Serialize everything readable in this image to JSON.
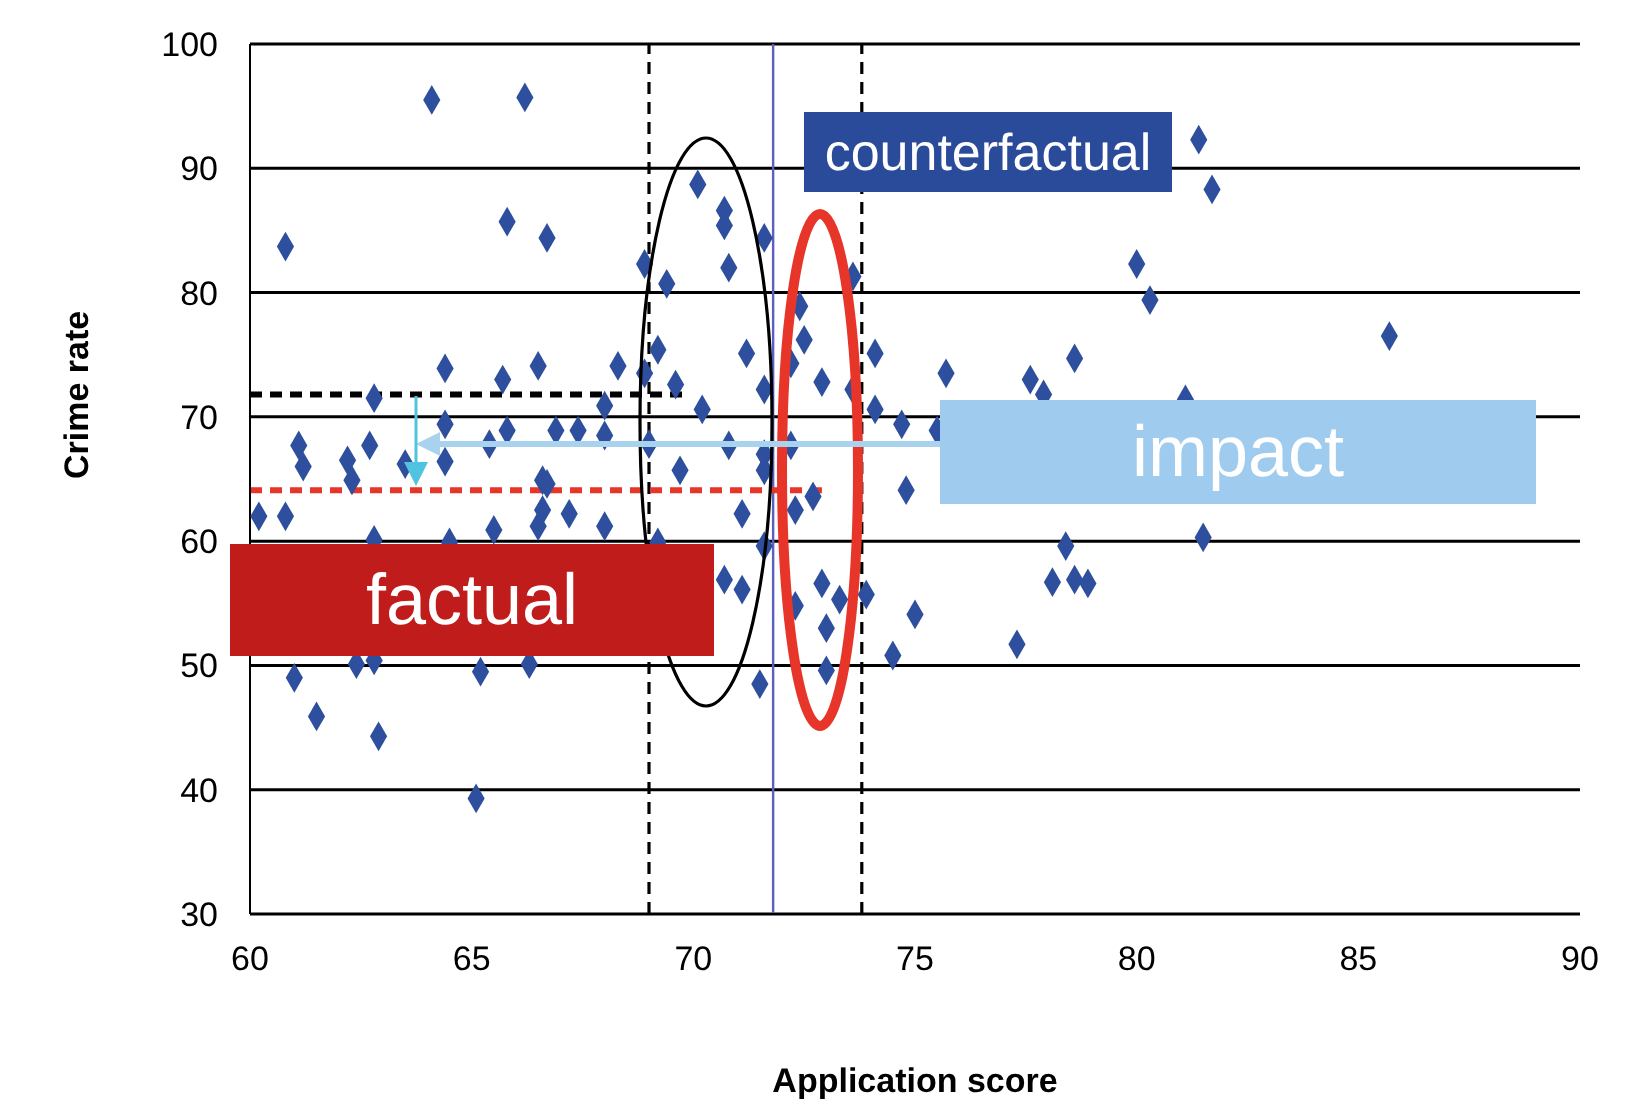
{
  "chart_data": {
    "type": "scatter",
    "xlabel": "Application score",
    "ylabel": "Crime rate",
    "xlim": [
      60,
      90
    ],
    "xticks": [
      60,
      65,
      70,
      75,
      80,
      85,
      90
    ],
    "ylim": [
      30,
      100
    ],
    "yticks": [
      30,
      40,
      50,
      60,
      70,
      80,
      90,
      100
    ],
    "grid": "y",
    "legend": false,
    "annotations": [
      "counterfactual",
      "factual",
      "impact"
    ],
    "ref_lines": [
      {
        "axis": "x",
        "value": 69.0,
        "color": "#000000",
        "line_style": "dashed"
      },
      {
        "axis": "x",
        "value": 73.8,
        "color": "#000000",
        "line_style": "dashed"
      },
      {
        "axis": "x",
        "value": 71.8,
        "color": "#5a5fc0",
        "line_style": "solid"
      }
    ],
    "series": [
      {
        "type": "scatter",
        "color": "#2e4f9e",
        "marker": "diamond",
        "x": [
          70.1,
          70.7,
          70.7,
          71.6,
          70.8,
          73.6,
          72.4,
          72.5,
          71.2,
          74.1,
          72.2,
          72.9,
          71.6,
          73.6,
          75.7,
          70.2,
          74.1,
          74.7,
          75.5,
          70.8,
          71.6,
          72.2,
          71.6,
          74.8,
          71.1,
          72.7,
          72.3,
          71.6,
          70.7,
          71.1,
          72.9,
          73.3,
          73.9,
          72.3,
          73.0,
          75.0,
          74.5,
          73.0,
          71.5,
          81.4,
          81.7,
          80.0,
          80.3,
          85.7,
          78.6,
          77.6,
          77.9,
          81.1,
          78.4,
          81.5,
          78.1,
          78.6,
          78.9,
          77.3,
          64.1,
          66.2,
          65.8,
          66.7,
          60.8,
          68.9,
          69.4,
          69.2,
          64.4,
          65.7,
          66.5,
          68.3,
          68.9,
          69.6,
          62.8,
          68.0,
          64.4,
          65.8,
          66.9,
          67.4,
          65.4,
          68.0,
          69.0,
          61.1,
          62.7,
          62.2,
          63.5,
          64.4,
          69.7,
          66.6,
          61.2,
          62.3,
          66.7,
          60.2,
          60.8,
          66.6,
          67.2,
          65.5,
          66.5,
          68.0,
          62.8,
          64.5,
          69.2,
          62.4,
          62.8,
          61.0,
          65.2,
          66.3,
          61.5,
          62.9,
          65.1
        ],
        "values": [
          88.7,
          86.6,
          85.4,
          84.4,
          82.0,
          81.3,
          78.9,
          76.2,
          75.1,
          75.1,
          74.3,
          72.8,
          72.2,
          72.2,
          73.5,
          70.6,
          70.6,
          69.4,
          68.9,
          67.7,
          67.0,
          67.7,
          65.7,
          64.1,
          62.2,
          63.6,
          62.5,
          59.6,
          56.9,
          56.1,
          56.6,
          55.3,
          55.7,
          54.8,
          53.0,
          54.1,
          50.8,
          49.6,
          48.5,
          92.3,
          88.3,
          82.3,
          79.4,
          76.5,
          74.7,
          73.0,
          71.8,
          71.4,
          59.6,
          60.3,
          56.7,
          56.9,
          56.6,
          51.7,
          95.5,
          95.7,
          85.7,
          84.4,
          83.7,
          82.3,
          80.7,
          75.4,
          73.9,
          73.0,
          74.1,
          74.1,
          73.5,
          72.6,
          71.5,
          70.9,
          69.4,
          68.9,
          68.9,
          68.9,
          67.8,
          68.5,
          67.8,
          67.7,
          67.7,
          66.5,
          66.2,
          66.4,
          65.7,
          64.9,
          66.0,
          64.9,
          64.6,
          62.0,
          62.0,
          62.5,
          62.2,
          60.9,
          61.2,
          61.2,
          60.1,
          59.9,
          59.9,
          50.1,
          50.4,
          49.0,
          49.5,
          50.1,
          45.9,
          44.3,
          39.3
        ]
      },
      {
        "type": "line",
        "color": "#000000",
        "line_style": "dashed",
        "x": [
          60,
          69.9
        ],
        "values": [
          71.8,
          71.8
        ]
      },
      {
        "type": "line",
        "color": "#e8352a",
        "line_style": "dashed",
        "x": [
          60,
          72.9
        ],
        "values": [
          64.1,
          64.1
        ]
      }
    ]
  }
}
